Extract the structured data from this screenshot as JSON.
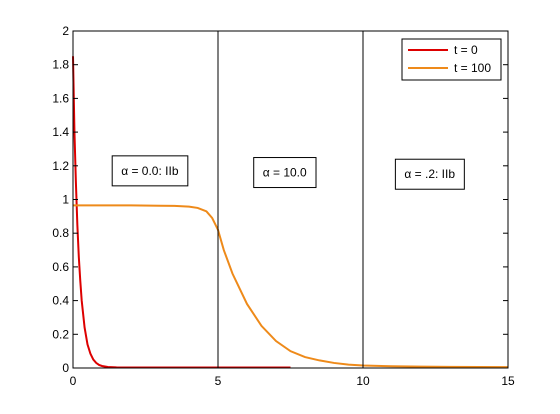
{
  "chart_data": {
    "type": "line",
    "title": "",
    "xlabel": "",
    "ylabel": "",
    "xlim": [
      0,
      15
    ],
    "ylim": [
      0,
      2
    ],
    "x_ticks": [
      0,
      5,
      10,
      15
    ],
    "y_ticks": [
      0,
      0.2,
      0.4,
      0.6,
      0.8,
      1,
      1.2,
      1.4,
      1.6,
      1.8,
      2
    ],
    "x_tick_labels": [
      "0",
      "5",
      "10",
      "15"
    ],
    "y_tick_labels": [
      "0",
      "0.2",
      "0.4",
      "0.6",
      "0.8",
      "1",
      "1.2",
      "1.4",
      "1.6",
      "1.8",
      "2"
    ],
    "grid": false,
    "legend_position": "top-right",
    "vertical_lines": [
      5,
      10
    ],
    "region_labels": [
      {
        "text": "α = 0.0: IIb",
        "x": 2.65,
        "y": 1.17
      },
      {
        "text": "α = 10.0",
        "x": 7.3,
        "y": 1.16
      },
      {
        "text": "α = .2: IIb",
        "x": 12.3,
        "y": 1.15
      }
    ],
    "series": [
      {
        "name": "t = 0",
        "color": "#dd0000",
        "x": [
          0,
          0.05,
          0.1,
          0.15,
          0.2,
          0.25,
          0.3,
          0.4,
          0.5,
          0.6,
          0.7,
          0.8,
          0.9,
          1.0,
          1.2,
          1.5,
          2,
          3,
          4,
          5,
          6,
          7,
          7.5
        ],
        "y": [
          1.85,
          1.4,
          1.1,
          0.85,
          0.66,
          0.52,
          0.4,
          0.24,
          0.14,
          0.085,
          0.05,
          0.03,
          0.018,
          0.012,
          0.006,
          0.004,
          0.003,
          0.003,
          0.003,
          0.003,
          0.003,
          0.003,
          0.003
        ]
      },
      {
        "name": "t = 100",
        "color": "#ee8a1a",
        "x": [
          0,
          0.5,
          1,
          2,
          3,
          3.5,
          4,
          4.3,
          4.6,
          4.8,
          5.0,
          5.2,
          5.5,
          6.0,
          6.5,
          7.0,
          7.5,
          8.0,
          8.5,
          9.0,
          9.5,
          10.0,
          11,
          12,
          13,
          14,
          15
        ],
        "y": [
          0.965,
          0.965,
          0.965,
          0.965,
          0.963,
          0.962,
          0.958,
          0.95,
          0.93,
          0.89,
          0.82,
          0.7,
          0.56,
          0.38,
          0.25,
          0.16,
          0.1,
          0.065,
          0.045,
          0.03,
          0.02,
          0.015,
          0.01,
          0.008,
          0.007,
          0.006,
          0.005
        ]
      }
    ]
  }
}
